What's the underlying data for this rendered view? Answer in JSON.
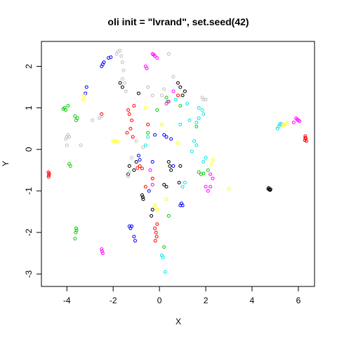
{
  "chart_data": {
    "type": "scatter",
    "title": "oli init = \"lvrand\", set.seed(42)",
    "xlabel": "X",
    "ylabel": "Y",
    "xlim": [
      -5.1,
      6.7
    ],
    "ylim": [
      -3.3,
      2.6
    ],
    "xticks": [
      -4,
      -2,
      0,
      2,
      4,
      6
    ],
    "yticks": [
      -3,
      -2,
      -1,
      0,
      1,
      2
    ],
    "grid": false,
    "legend": "none",
    "marker": "open-circle",
    "colors": {
      "red": "#ff0000",
      "black": "#000000",
      "green": "#00cd00",
      "blue": "#0000ff",
      "cyan": "#00e5e5",
      "magenta": "#ff00ff",
      "yellow": "#ffff00",
      "gray": "#bebebe"
    },
    "series": [
      {
        "color": "red",
        "points": [
          [
            -4.8,
            -0.55
          ],
          [
            -4.78,
            -0.62
          ],
          [
            -4.76,
            -0.58
          ],
          [
            -4.79,
            -0.66
          ],
          [
            6.3,
            0.32
          ],
          [
            6.32,
            0.26
          ],
          [
            6.28,
            0.22
          ],
          [
            6.35,
            0.2
          ],
          [
            6.3,
            0.28
          ],
          [
            -0.95,
            -0.45
          ],
          [
            -0.85,
            -0.4
          ],
          [
            -0.75,
            -0.46
          ],
          [
            -1.2,
            0.7
          ],
          [
            -1.25,
            0.5
          ],
          [
            -1.3,
            0.85
          ],
          [
            -1.1,
            1.05
          ],
          [
            -1.15,
            0.3
          ],
          [
            -1.35,
            0.95
          ],
          [
            -0.2,
            -1.9
          ],
          [
            -0.15,
            -2.0
          ],
          [
            -0.12,
            -2.1
          ],
          [
            -0.18,
            -2.2
          ],
          [
            -0.1,
            -1.8
          ],
          [
            -2.5,
            0.85
          ],
          [
            -0.6,
            -0.9
          ],
          [
            -0.5,
            0.6
          ],
          [
            -0.3,
            -0.7
          ],
          [
            0.8,
            1.3
          ],
          [
            -1.4,
            0.4
          ]
        ]
      },
      {
        "color": "black",
        "points": [
          [
            4.7,
            -0.95
          ],
          [
            4.75,
            -0.97
          ],
          [
            4.8,
            -0.96
          ],
          [
            4.72,
            -0.93
          ],
          [
            4.78,
            -0.98
          ],
          [
            -0.75,
            -1.1
          ],
          [
            -0.7,
            -1.2
          ],
          [
            -0.72,
            -1.15
          ],
          [
            0.4,
            -0.3
          ],
          [
            0.45,
            -0.4
          ],
          [
            0.5,
            -0.5
          ],
          [
            -1.3,
            -0.4
          ],
          [
            -1.35,
            -0.6
          ],
          [
            -1.1,
            -0.5
          ],
          [
            -1.0,
            -0.3
          ],
          [
            0.8,
            1.6
          ],
          [
            0.9,
            1.5
          ],
          [
            1.1,
            1.4
          ],
          [
            1.0,
            1.3
          ],
          [
            -1.7,
            1.6
          ],
          [
            -1.6,
            1.5
          ],
          [
            0.2,
            -0.85
          ],
          [
            0.3,
            -0.9
          ],
          [
            -0.3,
            -1.45
          ],
          [
            -0.35,
            -1.6
          ],
          [
            -0.9,
            1.35
          ],
          [
            0.9,
            -0.4
          ],
          [
            0.85,
            -0.8
          ]
        ]
      },
      {
        "color": "green",
        "points": [
          [
            -4.1,
            1.0
          ],
          [
            -4.05,
            0.95
          ],
          [
            -3.95,
            1.05
          ],
          [
            -4.15,
            0.97
          ],
          [
            -3.65,
            0.8
          ],
          [
            -3.6,
            0.7
          ],
          [
            -3.55,
            0.75
          ],
          [
            -3.9,
            -0.35
          ],
          [
            -3.85,
            -0.4
          ],
          [
            -3.6,
            -1.9
          ],
          [
            -3.62,
            -2.0
          ],
          [
            -3.58,
            -1.95
          ],
          [
            -3.65,
            -2.15
          ],
          [
            1.7,
            -0.55
          ],
          [
            1.8,
            -0.6
          ],
          [
            1.9,
            -0.58
          ],
          [
            2.1,
            -0.5
          ],
          [
            0.3,
            1.25
          ],
          [
            0.35,
            1.15
          ],
          [
            0.9,
            1.05
          ],
          [
            1.6,
            0.55
          ],
          [
            0.4,
            -1.6
          ],
          [
            0.2,
            -2.35
          ],
          [
            -0.1,
            0.95
          ],
          [
            -0.5,
            0.4
          ]
        ]
      },
      {
        "color": "blue",
        "points": [
          [
            -2.45,
            2.05
          ],
          [
            -2.5,
            2.0
          ],
          [
            -2.4,
            2.1
          ],
          [
            -2.2,
            2.2
          ],
          [
            -2.1,
            2.22
          ],
          [
            -3.2,
            1.35
          ],
          [
            -3.15,
            1.5
          ],
          [
            -1.3,
            -1.85
          ],
          [
            -1.25,
            -1.9
          ],
          [
            -1.2,
            -1.85
          ],
          [
            -1.1,
            -2.1
          ],
          [
            -1.05,
            -2.2
          ],
          [
            1.0,
            -1.35
          ],
          [
            0.95,
            -1.3
          ],
          [
            0.9,
            -1.35
          ],
          [
            0.2,
            0.35
          ],
          [
            0.3,
            0.3
          ],
          [
            0.5,
            0.25
          ],
          [
            -0.9,
            -0.15
          ],
          [
            -0.85,
            -0.25
          ],
          [
            -0.45,
            -1.0
          ],
          [
            -0.3,
            -0.3
          ],
          [
            -0.2,
            0.35
          ],
          [
            0.6,
            -0.4
          ]
        ]
      },
      {
        "color": "cyan",
        "points": [
          [
            5.1,
            0.5
          ],
          [
            5.15,
            0.55
          ],
          [
            5.2,
            0.6
          ],
          [
            5.25,
            0.62
          ],
          [
            0.1,
            -2.55
          ],
          [
            0.15,
            -2.6
          ],
          [
            0.25,
            -2.95
          ],
          [
            1.6,
            0.65
          ],
          [
            1.7,
            0.75
          ],
          [
            1.9,
            0.85
          ],
          [
            1.85,
            0.95
          ],
          [
            1.7,
            1.0
          ],
          [
            1.2,
            1.1
          ],
          [
            1.3,
            0.7
          ],
          [
            1.5,
            0.2
          ],
          [
            1.6,
            0.1
          ],
          [
            1.4,
            -0.05
          ],
          [
            1.9,
            -0.3
          ],
          [
            2.0,
            -0.2
          ],
          [
            1.1,
            -0.8
          ],
          [
            1.0,
            -0.9
          ],
          [
            -0.6,
            0.1
          ],
          [
            -0.5,
            0.3
          ],
          [
            0.9,
            0.6
          ],
          [
            0.7,
            1.2
          ]
        ]
      },
      {
        "color": "magenta",
        "points": [
          [
            -0.3,
            2.3
          ],
          [
            -0.2,
            2.25
          ],
          [
            -0.1,
            2.2
          ],
          [
            -0.25,
            2.28
          ],
          [
            -0.6,
            2.0
          ],
          [
            -0.55,
            1.95
          ],
          [
            5.9,
            0.75
          ],
          [
            6.0,
            0.7
          ],
          [
            5.95,
            0.72
          ],
          [
            6.05,
            0.68
          ],
          [
            5.8,
            0.65
          ],
          [
            -2.5,
            -2.4
          ],
          [
            -2.45,
            -2.5
          ],
          [
            -2.48,
            -2.45
          ],
          [
            2.2,
            -0.6
          ],
          [
            2.3,
            -0.7
          ],
          [
            2.0,
            -0.9
          ],
          [
            2.1,
            -1.0
          ],
          [
            2.2,
            -0.9
          ],
          [
            0.4,
            1.15
          ],
          [
            0.3,
            1.1
          ],
          [
            -0.4,
            -0.5
          ],
          [
            -0.3,
            -0.85
          ],
          [
            0.6,
            1.4
          ]
        ]
      },
      {
        "color": "yellow",
        "points": [
          [
            5.4,
            0.6
          ],
          [
            5.5,
            0.62
          ],
          [
            5.35,
            0.58
          ],
          [
            -1.9,
            0.2
          ],
          [
            -2.0,
            0.2
          ],
          [
            -1.8,
            0.18
          ],
          [
            -3.3,
            1.2
          ],
          [
            -3.25,
            1.3
          ],
          [
            3.0,
            -0.95
          ],
          [
            2.3,
            -0.25
          ],
          [
            2.25,
            -0.35
          ],
          [
            0.3,
            -1.2
          ],
          [
            -0.1,
            -1.45
          ],
          [
            -0.6,
            1.0
          ],
          [
            -0.2,
            -1.35
          ],
          [
            0.8,
            0.15
          ],
          [
            0.1,
            0.6
          ]
        ]
      },
      {
        "color": "gray",
        "points": [
          [
            -1.8,
            2.35
          ],
          [
            -1.7,
            2.38
          ],
          [
            -1.85,
            2.3
          ],
          [
            -1.65,
            2.25
          ],
          [
            -1.6,
            2.1
          ],
          [
            -1.55,
            1.9
          ],
          [
            -1.6,
            1.7
          ],
          [
            -1.5,
            1.6
          ],
          [
            -1.45,
            1.4
          ],
          [
            -4.0,
            0.3
          ],
          [
            -3.95,
            0.35
          ],
          [
            -4.05,
            0.25
          ],
          [
            -4.0,
            0.1
          ],
          [
            -3.9,
            0.3
          ],
          [
            -3.4,
            0.1
          ],
          [
            -2.9,
            0.7
          ],
          [
            -2.6,
            0.75
          ],
          [
            -2.5,
            0.8
          ],
          [
            1.9,
            1.2
          ],
          [
            1.85,
            1.25
          ],
          [
            2.0,
            1.2
          ],
          [
            -0.5,
            1.5
          ],
          [
            -0.3,
            1.3
          ],
          [
            0.2,
            1.45
          ],
          [
            0.1,
            1.3
          ],
          [
            -1.35,
            -0.65
          ],
          [
            -1.3,
            -0.55
          ],
          [
            -1.2,
            -0.2
          ],
          [
            -1.0,
            0.2
          ],
          [
            -0.7,
            0.05
          ],
          [
            0.6,
            1.75
          ],
          [
            0.4,
            2.3
          ]
        ]
      }
    ]
  }
}
